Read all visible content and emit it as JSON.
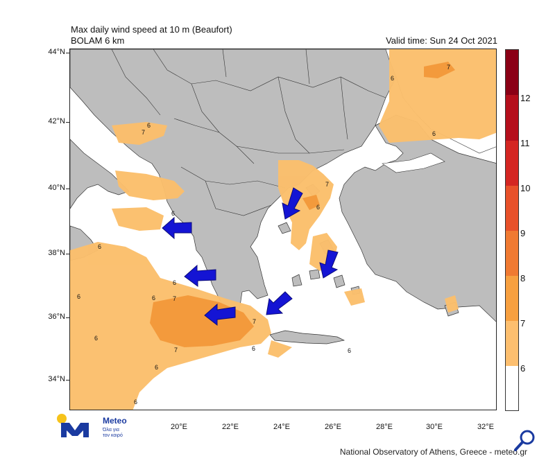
{
  "header": {
    "title_line1": "Max daily wind speed at 10 m (Beaufort)",
    "title_line2": "BOLAM 6 km",
    "valid_time": "Valid time: Sun 24 Oct 2021"
  },
  "axes": {
    "lat_labels": [
      "44°N",
      "42°N",
      "40°N",
      "38°N",
      "36°N",
      "34°N"
    ],
    "lon_labels": [
      "20°E",
      "22°E",
      "24°E",
      "26°E",
      "28°E",
      "30°E",
      "32°E"
    ]
  },
  "colorbar": {
    "labels": [
      "12",
      "11",
      "10",
      "9",
      "8",
      "7",
      "6"
    ],
    "colors": {
      "6": "#ffffff",
      "7": "#fdbf6f",
      "8": "#f7a040",
      "9": "#f07a32",
      "10": "#e8512a",
      "11": "#d42622",
      "12": "#b50f1c",
      "top": "#8b0016"
    }
  },
  "contour_labels": [
    "7",
    "6",
    "6",
    "7",
    "6",
    "6",
    "6",
    "6",
    "7",
    "6",
    "7",
    "6",
    "6",
    "6",
    "6",
    "6",
    "7",
    "6",
    "7",
    "6"
  ],
  "colors": {
    "land": "#bdbdbd",
    "sea": "#ffffff",
    "wind7": "#fbbf6c",
    "wind8": "#f39a3c",
    "arrow": "#1414d4"
  },
  "footer": {
    "credit": "National Observatory of Athens, Greece - meteo.gr"
  },
  "logo": {
    "name": "Meteo",
    "tagline_1": "Όλα για",
    "tagline_2": "τον καιρό"
  }
}
